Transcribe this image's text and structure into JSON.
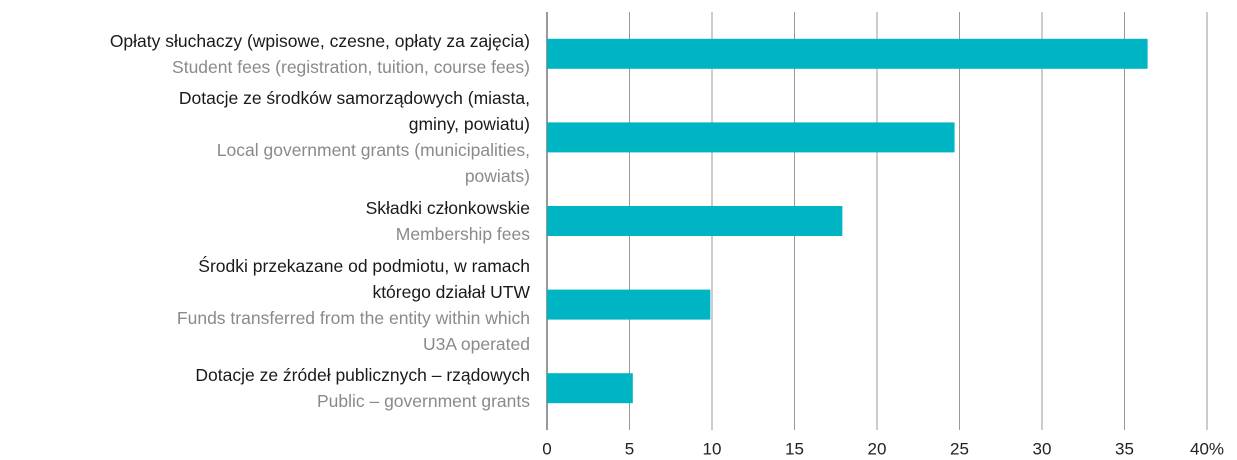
{
  "chart_data": {
    "type": "bar",
    "orientation": "horizontal",
    "categories": [
      {
        "pl": [
          "Opłaty słuchaczy (wpisowe, czesne, opłaty za zajęcia)"
        ],
        "en": [
          "Student fees (registration, tuition, course fees)"
        ]
      },
      {
        "pl": [
          "Dotacje ze środków samorządowych (miasta,",
          "gminy, powiatu)"
        ],
        "en": [
          "Local government grants (municipalities,",
          "powiats)"
        ]
      },
      {
        "pl": [
          "Składki członkowskie"
        ],
        "en": [
          "Membership fees"
        ]
      },
      {
        "pl": [
          "Środki przekazane od podmiotu, w ramach",
          "którego działał UTW"
        ],
        "en": [
          "Funds transferred from the entity within which",
          "U3A operated"
        ]
      },
      {
        "pl": [
          "Dotacje ze źródeł publicznych – rządowych"
        ],
        "en": [
          "Public – government grants"
        ]
      }
    ],
    "values": [
      36.4,
      24.7,
      17.9,
      9.9,
      5.2
    ],
    "color": "#00b5c3",
    "xlim": [
      0,
      40
    ],
    "xticks": [
      0,
      5,
      10,
      15,
      20,
      25,
      30,
      35,
      {
        "value": 40,
        "label": "40%"
      }
    ],
    "grid": true
  }
}
